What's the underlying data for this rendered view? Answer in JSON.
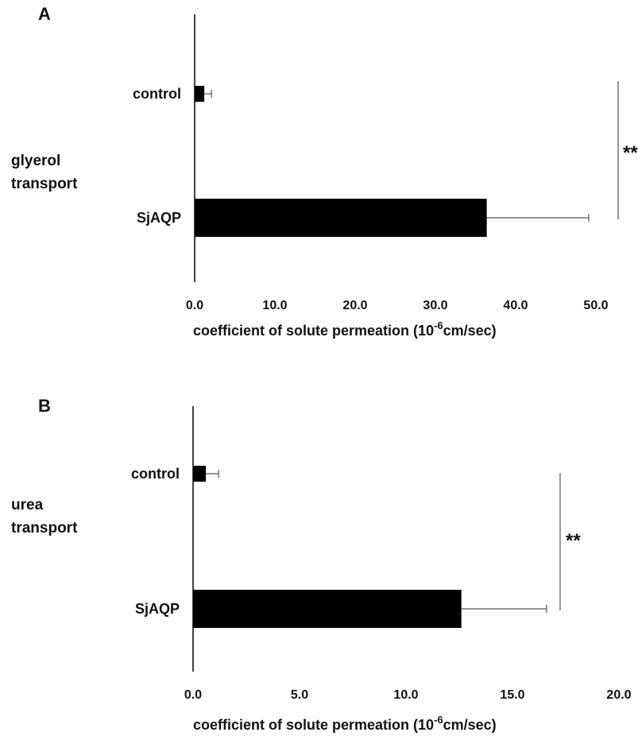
{
  "chart_data": [
    {
      "type": "bar",
      "orientation": "horizontal",
      "panel_label": "A",
      "row_label_lines": [
        "glyerol",
        "transport"
      ],
      "categories": [
        "control",
        "SjAQP"
      ],
      "values": [
        1.2,
        36.4
      ],
      "error": [
        0.9,
        12.7
      ],
      "bar_color": "#000000",
      "error_color": "#555555",
      "xlim": [
        0,
        50
      ],
      "xticks": [
        "0.0",
        "10.0",
        "20.0",
        "30.0",
        "40.0",
        "50.0"
      ],
      "xtick_values": [
        0,
        10,
        20,
        30,
        40,
        50
      ],
      "xlabel_main": "coefficient of solute permeation (10",
      "xlabel_sup": "-6",
      "xlabel_tail": "cm/sec)",
      "significance": "**"
    },
    {
      "type": "bar",
      "orientation": "horizontal",
      "panel_label": "B",
      "row_label_lines": [
        "urea",
        "transport"
      ],
      "categories": [
        "control",
        "SjAQP"
      ],
      "values": [
        0.6,
        12.6
      ],
      "error": [
        0.6,
        4.0
      ],
      "bar_color": "#000000",
      "error_color": "#555555",
      "xlim": [
        0,
        20
      ],
      "xticks": [
        "0.0",
        "5.0",
        "10.0",
        "15.0",
        "20.0"
      ],
      "xtick_values": [
        0,
        5,
        10,
        15,
        20
      ],
      "xlabel_main": "coefficient of solute permeation (10",
      "xlabel_sup": "-6",
      "xlabel_tail": "cm/sec)",
      "significance": "**"
    }
  ]
}
